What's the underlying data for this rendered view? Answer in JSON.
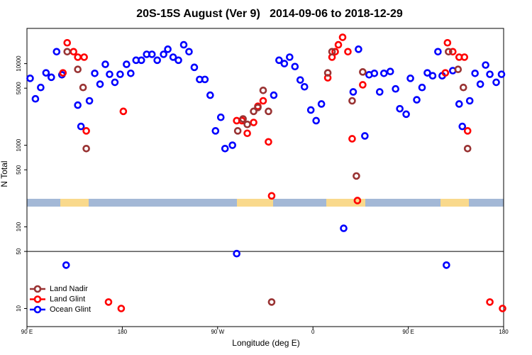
{
  "chart_data": {
    "type": "scatter",
    "title": "20S-15S August (Ver 9)   2014-09-06 to 2018-12-29",
    "xlabel": "Longitude (deg E)",
    "ylabel": "N Total",
    "log_y": true,
    "xlim": [
      90,
      540
    ],
    "ylim": [
      6,
      27000
    ],
    "xticks": [
      {
        "value": 90,
        "label": "90 E"
      },
      180,
      {
        "value": 270,
        "label": "90 W"
      },
      {
        "value": 360,
        "label": "0"
      },
      {
        "value": 450,
        "label": "90 E"
      },
      {
        "value": 540,
        "label": "180"
      }
    ],
    "yticks": [
      10,
      50,
      100,
      500,
      1000,
      5000,
      10000
    ],
    "hline": 50,
    "legend": "lower left",
    "series": [
      {
        "name": "Land Nadir",
        "color": "#993333",
        "x": [
          128,
          138,
          143,
          146,
          289,
          294,
          298,
          304,
          308,
          313,
          318,
          321,
          374,
          378,
          397,
          401,
          407,
          488,
          497,
          502,
          506
        ],
        "values": [
          14000,
          8500,
          5100,
          910,
          1500,
          2100,
          1800,
          2600,
          2900,
          4700,
          2600,
          12,
          7700,
          14000,
          3500,
          420,
          7900,
          14000,
          8500,
          5100,
          910
        ]
      },
      {
        "name": "Land Glint",
        "color": "#ff0000",
        "x": [
          124,
          128,
          134,
          138,
          144,
          146,
          167,
          179,
          181,
          288,
          293,
          298,
          304,
          308,
          313,
          318,
          321,
          374,
          378,
          381,
          384,
          388,
          393,
          397,
          402,
          407,
          485,
          487,
          492,
          498,
          503,
          506,
          527,
          539
        ],
        "values": [
          7700,
          18000,
          14000,
          12000,
          12000,
          1500,
          12,
          10,
          2600,
          2000,
          2000,
          1400,
          1900,
          3000,
          3500,
          1100,
          240,
          6700,
          12000,
          14000,
          17000,
          21000,
          14000,
          1200,
          210,
          5500,
          7700,
          18000,
          14000,
          12000,
          12000,
          1500,
          12,
          10
        ]
      },
      {
        "name": "Ocean Glint",
        "color": "#0000ff",
        "x": [
          93,
          98,
          103,
          108,
          113,
          118,
          123,
          127,
          138,
          141,
          149,
          154,
          159,
          164,
          168,
          173,
          178,
          184,
          188,
          193,
          198,
          203,
          208,
          213,
          219,
          223,
          228,
          233,
          238,
          243,
          248,
          253,
          258,
          263,
          268,
          273,
          277,
          284,
          288,
          323,
          328,
          333,
          338,
          343,
          348,
          352,
          358,
          363,
          368,
          389,
          398,
          403,
          409,
          413,
          418,
          423,
          427,
          433,
          438,
          442,
          448,
          452,
          458,
          463,
          468,
          473,
          478,
          482,
          486,
          492,
          498,
          501,
          508,
          513,
          518,
          523,
          527,
          533,
          538
        ],
        "values": [
          6600,
          3700,
          5100,
          7700,
          6800,
          14000,
          7300,
          34,
          3100,
          1700,
          3500,
          7600,
          5600,
          9800,
          7400,
          5900,
          7400,
          9800,
          7600,
          11000,
          11000,
          13000,
          13000,
          11000,
          13000,
          15000,
          12000,
          11000,
          17000,
          14000,
          9000,
          6400,
          6400,
          4100,
          1500,
          2200,
          910,
          1000,
          47,
          4100,
          11000,
          10000,
          12000,
          9200,
          6300,
          5200,
          2700,
          2000,
          3200,
          96,
          4500,
          15000,
          1300,
          7300,
          7600,
          4500,
          7600,
          8000,
          4900,
          2800,
          2400,
          6600,
          3600,
          5100,
          7700,
          7100,
          14000,
          7100,
          34,
          8200,
          3200,
          1700,
          3500,
          7600,
          5600,
          9600,
          7400,
          5900,
          7400
        ]
      }
    ]
  }
}
